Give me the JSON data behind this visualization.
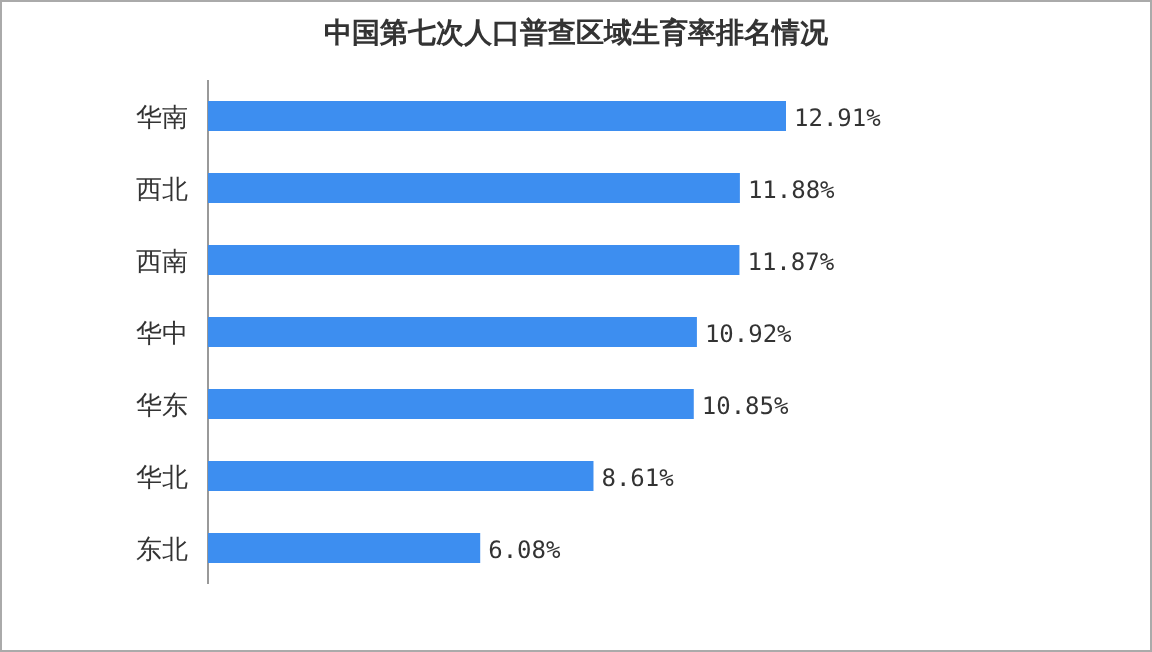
{
  "chart_data": {
    "type": "bar",
    "orientation": "horizontal",
    "title": "中国第七次人口普查区域生育率排名情况",
    "categories": [
      "华南",
      "西北",
      "西南",
      "华中",
      "华东",
      "华北",
      "东北"
    ],
    "values": [
      12.91,
      11.88,
      11.87,
      10.92,
      10.85,
      8.61,
      6.08
    ],
    "value_labels": [
      "12.91%",
      "11.88%",
      "11.87%",
      "10.92%",
      "10.85%",
      "8.61%",
      "6.08%"
    ],
    "color": "#3d8ef0"
  }
}
